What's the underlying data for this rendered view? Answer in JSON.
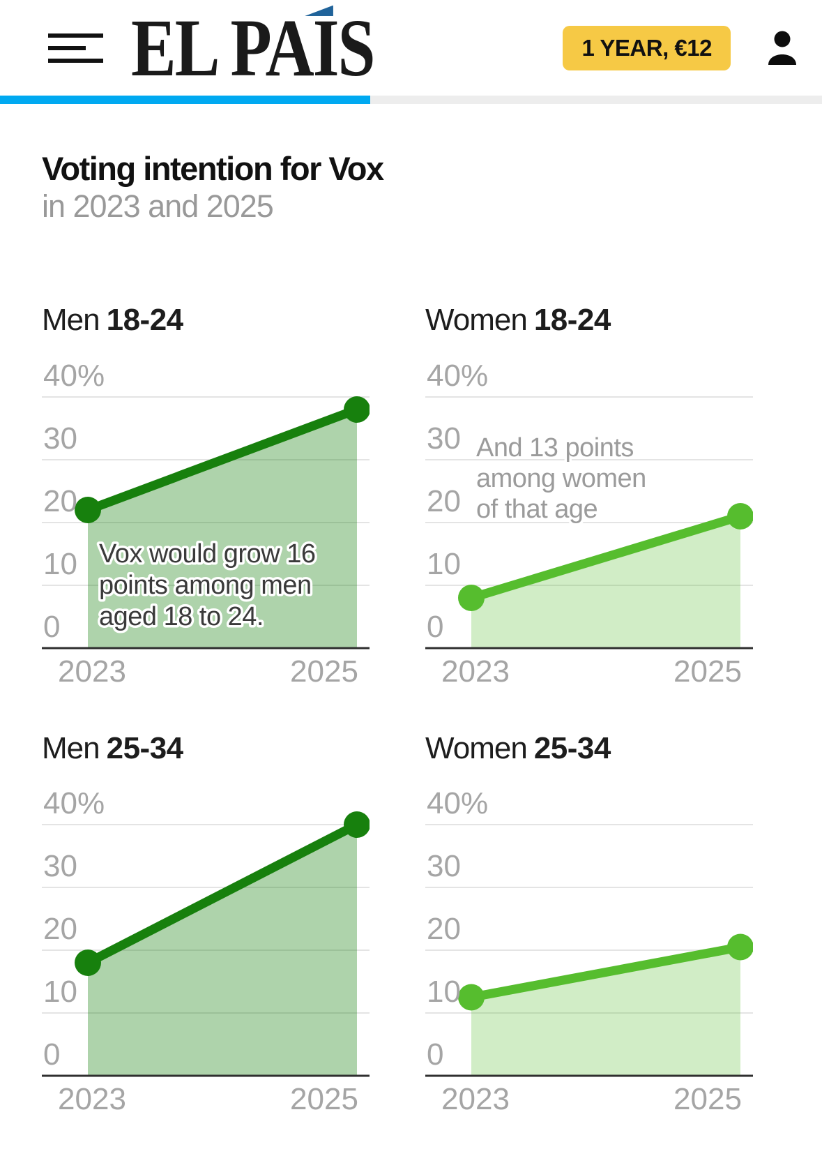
{
  "header": {
    "brand": "EL PAÍS",
    "menu_icon": "hamburger-icon",
    "subscribe_label": "1 YEAR, €12",
    "account_icon": "person-icon",
    "brand_accent_color": "#20639a",
    "subscribe_color": "#f6c945"
  },
  "progress_bar": {
    "percent": 45,
    "color": "#00a9f1"
  },
  "article": {
    "title": "Voting intention for Vox",
    "subtitle": "in 2023 and 2025"
  },
  "chart_data": {
    "type": "area",
    "x": [
      "2023",
      "2025"
    ],
    "ylim": [
      0,
      40
    ],
    "grid": true,
    "yticks": [
      {
        "label": "40%",
        "value": 40
      },
      {
        "label": "30",
        "value": 30
      },
      {
        "label": "20",
        "value": 20
      },
      {
        "label": "10",
        "value": 10
      },
      {
        "label": "0",
        "value": 0
      }
    ],
    "charts": [
      {
        "group": "Men",
        "age": "18-24",
        "values": [
          22,
          38
        ],
        "color": "#17800d",
        "fill_opacity": 0.35,
        "annotation": {
          "lines": [
            "Vox would grow 16",
            "points among men",
            "aged 18 to 24."
          ],
          "color": "#3a3a3a",
          "x": 82,
          "y": 287,
          "line_height": 45
        }
      },
      {
        "group": "Women",
        "age": "18-24",
        "values": [
          8,
          21
        ],
        "color": "#56bd2e",
        "fill_opacity": 0.27,
        "annotation": {
          "lines": [
            "And 13 points",
            "among women",
            "of that age"
          ],
          "color": "#9b9b9b",
          "x": 73,
          "y": 135,
          "line_height": 44
        }
      },
      {
        "group": "Men",
        "age": "25-34",
        "values": [
          18,
          40
        ],
        "color": "#17800d",
        "fill_opacity": 0.35,
        "annotation": null
      },
      {
        "group": "Women",
        "age": "25-34",
        "values": [
          12.5,
          20.5
        ],
        "color": "#56bd2e",
        "fill_opacity": 0.27,
        "annotation": null
      }
    ]
  }
}
